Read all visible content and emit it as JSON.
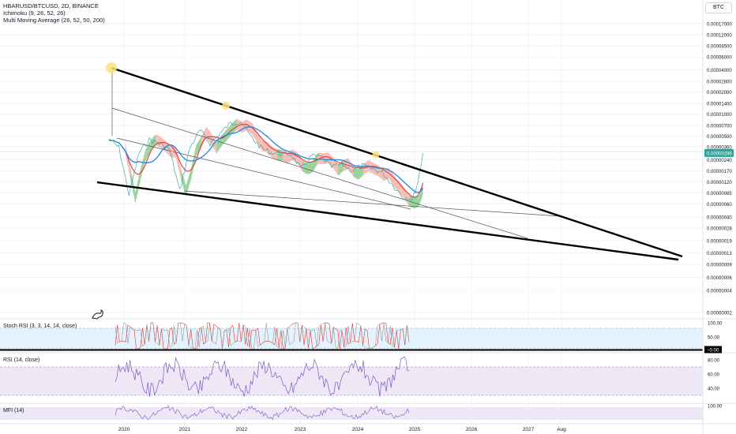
{
  "header": {
    "symbol_line": "HBARUSD/BTCUSD, 2D, BINANCE",
    "ichimoku": "Ichimoku (9, 26, 52, 26)",
    "mma": "Multi Moving Average (26, 52, 50, 200)",
    "currency": "BTC"
  },
  "panes": {
    "stoch_title": "Stoch RSI (3, 3, 14, 14, close)",
    "rsi_title": "RSI (14, close)",
    "mfi_title": "MFI (14)"
  },
  "colors": {
    "price": "#000000",
    "ichimoku_bear_cloud": "#f28b82",
    "ichimoku_bull_cloud": "#4caf50",
    "ma_fast": "#e53935",
    "ma_slow": "#1e88e5",
    "stoch_k": "#e53935",
    "stoch_d": "#1e88e5",
    "rsi": "#7e57c2",
    "rsi_band": "#ede7f6",
    "stoch_band": "#e3f2fd",
    "current_price_tag": "#26a69a",
    "highlight": "#fbe27a",
    "trendline": "#000000"
  },
  "chart_data": [
    {
      "type": "line",
      "title": "HBARUSD/BTCUSD, 2D, BINANCE",
      "y_scale": "log",
      "y_ticks": [
        "0.00017000",
        "0.00012000",
        "0.00008500",
        "0.00006000",
        "0.00004000",
        "0.00002800",
        "0.00002000",
        "0.00001400",
        "0.00001000",
        "0.00000700",
        "0.00000500",
        "0.00000360",
        "0.00000240",
        "0.00000170",
        "0.00000120",
        "0.00000085",
        "0.00000060",
        "0.00000040",
        "0.00000028",
        "0.00000019",
        "0.00000013",
        "0.00000009",
        "0.00000006",
        "0.00000004",
        "0.00000002"
      ],
      "current_price": "0.00000296",
      "x_ticks": [
        "2020",
        "2021",
        "2022",
        "2023",
        "2024",
        "2025",
        "2026",
        "2027",
        "Aug"
      ],
      "series": [
        {
          "x": [
            "2019-10",
            "2019-12",
            "2020-02",
            "2020-04",
            "2020-06",
            "2020-08",
            "2020-10",
            "2020-12",
            "2021-02",
            "2021-04",
            "2021-06",
            "2021-08",
            "2021-10",
            "2021-12",
            "2022-02",
            "2022-04",
            "2022-06",
            "2022-08",
            "2022-10",
            "2022-12",
            "2023-02",
            "2023-04",
            "2023-06",
            "2023-08",
            "2023-10",
            "2023-12",
            "2024-02",
            "2024-04",
            "2024-06",
            "2024-08",
            "2024-10",
            "2024-11",
            "2024-12"
          ],
          "values": [
            4.5e-06,
            3.5e-06,
            8e-07,
            3e-06,
            4.5e-06,
            4e-06,
            3.3e-06,
            9e-07,
            3.5e-06,
            6e-06,
            4e-06,
            5.5e-06,
            7.5e-06,
            8e-06,
            5e-06,
            3.5e-06,
            3e-06,
            2.9e-06,
            2.8e-06,
            1.8e-06,
            2.7e-06,
            2.6e-06,
            1.9e-06,
            2.1e-06,
            1.7e-06,
            2e-06,
            1.8e-06,
            1.6e-06,
            1.1e-06,
            7.5e-07,
            7e-07,
            1.2e-06,
            2.96e-06
          ]
        }
      ]
    },
    {
      "type": "line",
      "title": "Stoch RSI (3, 3, 14, 14, close)",
      "y_ticks": [
        "100.00",
        "50.00",
        "0.00"
      ],
      "ylim": [
        0,
        100
      ]
    },
    {
      "type": "line",
      "title": "RSI (14, close)",
      "y_ticks": [
        "80.00",
        "60.00",
        "40.00"
      ],
      "ylim": [
        20,
        90
      ]
    },
    {
      "type": "line",
      "title": "MFI (14)",
      "y_ticks": [
        "100.00"
      ],
      "ylim": [
        0,
        100
      ]
    }
  ]
}
